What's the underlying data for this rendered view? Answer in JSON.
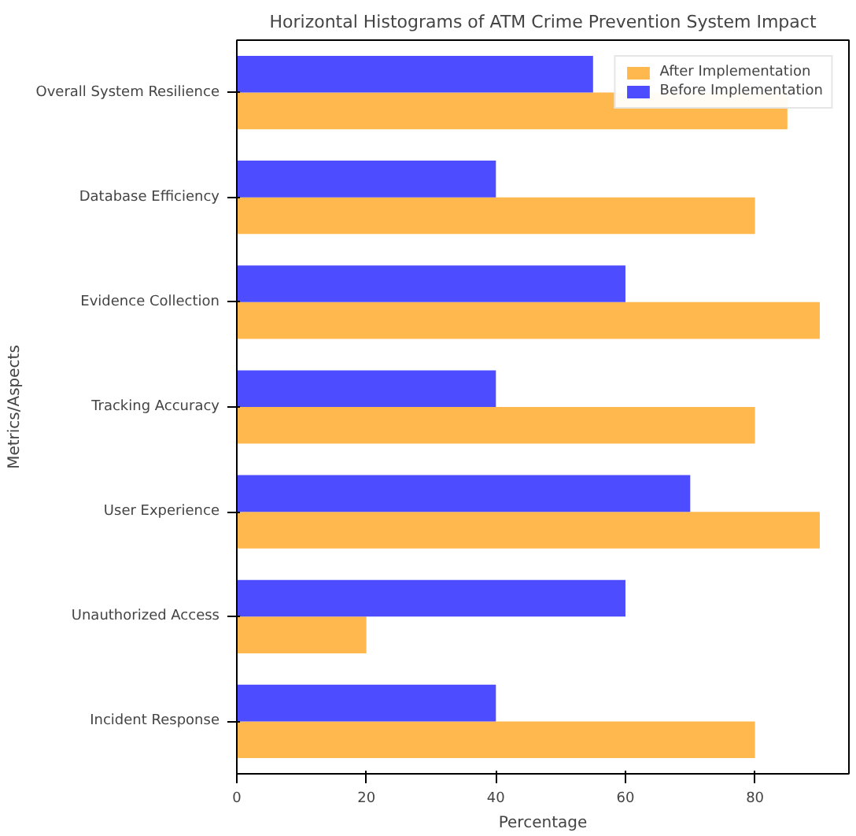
{
  "chart_data": {
    "type": "bar",
    "orientation": "horizontal",
    "title": "Horizontal Histograms of ATM Crime Prevention System Impact",
    "xlabel": "Percentage",
    "ylabel": "Metrics/Aspects",
    "categories": [
      "Overall System Resilience",
      "Database Efficiency",
      "Evidence Collection",
      "Tracking Accuracy",
      "User Experience",
      "Unauthorized Access",
      "Incident Response"
    ],
    "series": [
      {
        "name": "After Implementation",
        "color": "#ffb84d",
        "values": [
          85,
          80,
          90,
          80,
          90,
          20,
          80
        ]
      },
      {
        "name": "Before Implementation",
        "color": "#4d4dff",
        "values": [
          55,
          40,
          60,
          40,
          70,
          60,
          40
        ]
      }
    ],
    "xlim": [
      0,
      94.5
    ],
    "xticks": [
      0,
      20,
      40,
      60,
      80
    ],
    "grid": false,
    "legend": "top right"
  }
}
